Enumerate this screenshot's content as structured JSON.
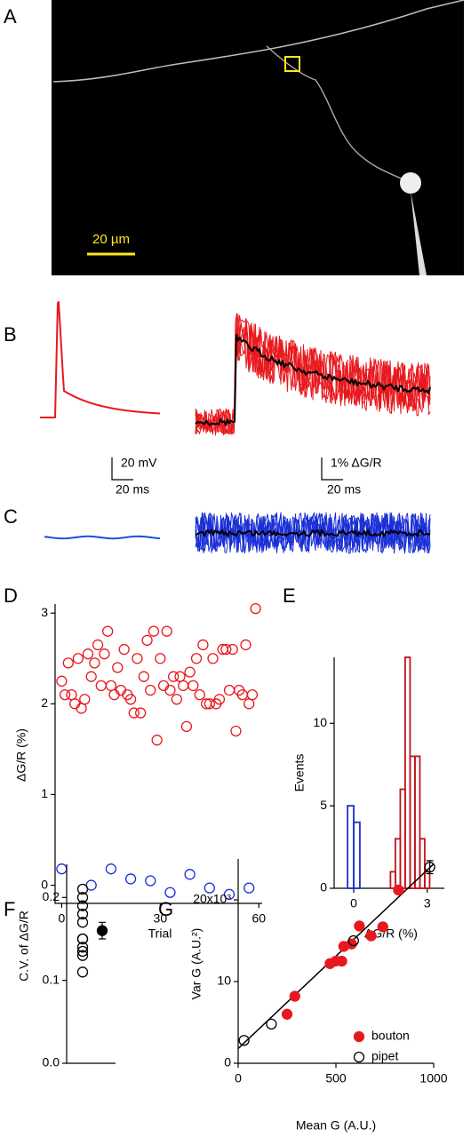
{
  "panel_labels": [
    "A",
    "B",
    "C",
    "D",
    "E",
    "F",
    "G"
  ],
  "scale_bars": {
    "image": "20 µm",
    "b_voltage": "20 mV",
    "b_time": "20 ms",
    "b_fluorescence": "1% ΔG/R",
    "b_time_right": "20 ms"
  },
  "chart_data": [
    {
      "type": "scatter",
      "x_label": "Trial",
      "y_label": "ΔG/R (%)",
      "xlim": [
        -2,
        61
      ],
      "xticks": [
        0,
        30,
        60
      ],
      "ylim": [
        -0.2,
        3.1
      ],
      "yticks": [
        0,
        1,
        2,
        3
      ],
      "series": [
        {
          "color": "#e8191e",
          "marker": "open",
          "x": [
            0,
            1,
            2,
            3,
            4,
            5,
            6,
            7,
            8,
            9,
            10,
            11,
            12,
            13,
            14,
            15,
            16,
            17,
            18,
            19,
            20,
            21,
            22,
            23,
            24,
            25,
            26,
            27,
            28,
            29,
            30,
            31,
            32,
            33,
            34,
            35,
            36,
            37,
            38,
            39,
            40,
            41,
            42,
            43,
            44,
            45,
            46,
            47,
            48,
            49,
            50,
            51,
            52,
            53,
            54,
            55,
            56,
            57,
            58,
            59
          ],
          "values": [
            2.25,
            2.1,
            2.45,
            2.1,
            2.0,
            2.5,
            1.95,
            2.05,
            2.55,
            2.3,
            2.45,
            2.65,
            2.2,
            2.55,
            2.8,
            2.2,
            2.1,
            2.4,
            2.15,
            2.6,
            2.1,
            2.05,
            1.9,
            2.5,
            1.9,
            2.3,
            2.7,
            2.15,
            2.8,
            1.6,
            2.5,
            2.2,
            2.8,
            2.15,
            2.3,
            2.05,
            2.3,
            2.2,
            1.75,
            2.35,
            2.2,
            2.5,
            2.1,
            2.65,
            2.0,
            2.0,
            2.5,
            2.0,
            2.05,
            2.6,
            2.6,
            2.15,
            2.6,
            1.7,
            2.15,
            2.1,
            2.65,
            2.0,
            2.1,
            3.05
          ]
        },
        {
          "color": "#1a2fd6",
          "marker": "open",
          "x": [
            0,
            9,
            15,
            21,
            27,
            33,
            39,
            45,
            51,
            57
          ],
          "values": [
            0.18,
            0.0,
            0.18,
            0.07,
            0.05,
            -0.08,
            0.12,
            -0.03,
            -0.1,
            -0.03
          ]
        }
      ]
    },
    {
      "type": "histogram",
      "x_label": "ΔG/R (%)",
      "y_label": "Events",
      "xlim": [
        -0.8,
        3.7
      ],
      "xticks": [
        0,
        3
      ],
      "ylim": [
        0,
        14
      ],
      "yticks": [
        0,
        5,
        10
      ],
      "series": [
        {
          "color": "#1a2fd6",
          "bins": [
            -0.25,
            0,
            0.25
          ],
          "values": [
            5,
            4
          ]
        },
        {
          "color": "#c0141c",
          "bins": [
            1.5,
            1.7,
            1.9,
            2.1,
            2.3,
            2.5,
            2.7,
            2.9,
            3.1
          ],
          "values": [
            1,
            3,
            6,
            14,
            8,
            8,
            3,
            1
          ]
        }
      ]
    },
    {
      "type": "dotplot",
      "y_label": "C.V. of ΔG/R",
      "ylim": [
        0,
        0.24
      ],
      "yticks": [
        {
          "value": 0,
          "label": "0.0"
        },
        0.1,
        0.2
      ],
      "series": [
        {
          "color": "#000000",
          "marker": "open",
          "values": [
            0.11,
            0.13,
            0.135,
            0.14,
            0.15,
            0.15,
            0.17,
            0.18,
            0.19,
            0.2,
            0.21
          ]
        },
        {
          "color": "#000000",
          "marker": "filled",
          "values": [
            0.16
          ],
          "errors": [
            0.01
          ]
        }
      ]
    },
    {
      "type": "scatter",
      "x_label": "Mean G (A.U.)",
      "y_label": "Var G (A.U.²)",
      "xlim": [
        0,
        1000
      ],
      "xticks": [
        0,
        500,
        1000
      ],
      "ylim": [
        0,
        25
      ],
      "yticks": [
        0,
        10,
        {
          "value": 20,
          "label": "20x10³"
        }
      ],
      "legend": "lower right",
      "fit": {
        "color": "#000000",
        "x": [
          0,
          1000
        ],
        "values": [
          1.8,
          24.4
        ]
      },
      "series": [
        {
          "name": "bouton",
          "color": "#e8191e",
          "marker": "filled",
          "x": [
            250,
            290,
            470,
            500,
            530,
            540,
            580,
            620,
            680,
            740,
            820
          ],
          "values": [
            6,
            8.2,
            12.2,
            12.5,
            12.5,
            14.3,
            14.6,
            16.8,
            15.6,
            16.7,
            21.2
          ]
        },
        {
          "name": "pipet",
          "color": "#000000",
          "marker": "open",
          "x": [
            30,
            170,
            590,
            980
          ],
          "values": [
            2.8,
            4.8,
            15,
            24
          ],
          "errors": [
            0,
            0,
            0,
            0.8
          ]
        }
      ]
    }
  ]
}
